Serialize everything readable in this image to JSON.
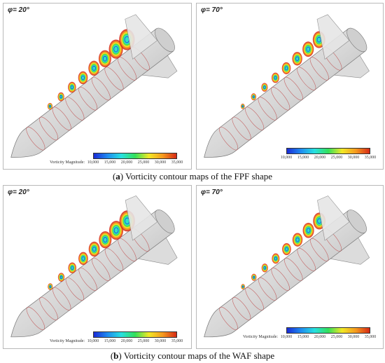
{
  "figure": {
    "panels": [
      {
        "phi": "φ= 20°",
        "colorbar_label": "Vorticity Magnitude:",
        "ticks": [
          "10,000",
          "15,000",
          "20,000",
          "25,000",
          "30,000",
          "35,000"
        ],
        "fin_style": "flat"
      },
      {
        "phi": "φ= 70°",
        "colorbar_label": "",
        "ticks": [
          "10,000",
          "15,000",
          "20,000",
          "25,000",
          "30,000",
          "35,000"
        ],
        "fin_style": "flat"
      },
      {
        "phi": "φ= 20°",
        "colorbar_label": "",
        "ticks": [],
        "fin_style": "wrap"
      },
      {
        "phi": "φ= 70°",
        "colorbar_label": "Vorticity Magnitude:",
        "ticks": [
          "10,000",
          "15,000",
          "20,000",
          "25,000",
          "30,000",
          "35,000"
        ],
        "fin_style": "wrap"
      }
    ],
    "captions": [
      {
        "letter": "a",
        "text": " Vorticity contour maps of the FPF shape"
      },
      {
        "letter": "b",
        "text": " Vorticity contour maps of the WAF shape"
      }
    ],
    "colormap": [
      "#1a2bd6",
      "#1f8bf0",
      "#27e0e0",
      "#33e05a",
      "#f2e826",
      "#f59a1e",
      "#d62a16"
    ]
  }
}
